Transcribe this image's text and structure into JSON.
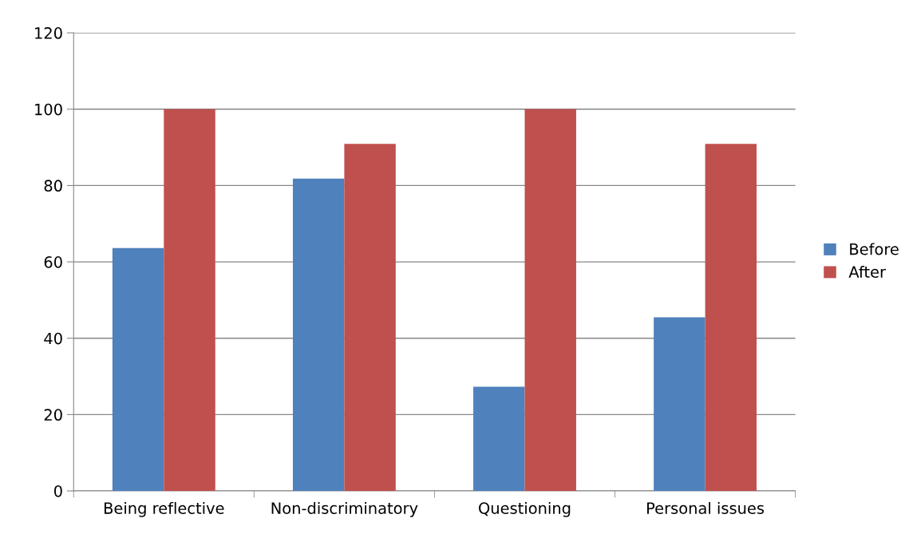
{
  "chart_data": {
    "type": "bar",
    "categories": [
      "Being reflective",
      "Non-discriminatory",
      "Questioning",
      "Personal issues"
    ],
    "series": [
      {
        "name": "Before",
        "color": "#4f81bd",
        "values": [
          63.6,
          81.8,
          27.3,
          45.5
        ]
      },
      {
        "name": "After",
        "color": "#c0504d",
        "values": [
          100,
          90.9,
          100,
          90.9
        ]
      }
    ],
    "ylim": [
      0,
      120
    ],
    "yticks": [
      0,
      20,
      40,
      60,
      80,
      100,
      120
    ],
    "grid": "y",
    "legend": "right"
  }
}
